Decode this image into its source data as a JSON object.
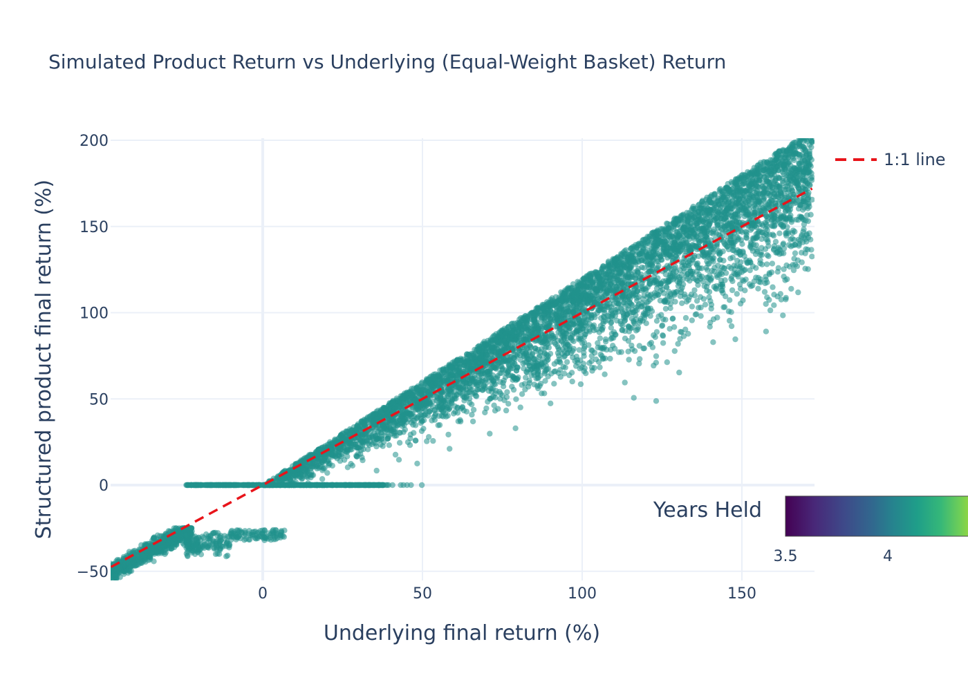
{
  "chart_data": {
    "type": "scatter",
    "title": "Simulated Product Return vs Underlying (Equal-Weight Basket) Return",
    "xlabel": "Underlying final return (%)",
    "ylabel": "Structured product final return (%)",
    "xlim": [
      -47.5,
      172
    ],
    "ylim": [
      -55,
      200
    ],
    "x_ticks": [
      "0",
      "50",
      "100",
      "150"
    ],
    "y_ticks": [
      "200",
      "150",
      "100",
      "50",
      "0",
      "−50"
    ],
    "x_tick_values": [
      0,
      50,
      100,
      150
    ],
    "y_tick_values": [
      200,
      150,
      100,
      50,
      0,
      -50
    ],
    "grid": true,
    "marker_color": "#21918c",
    "marker_opacity": 0.55,
    "series": [
      {
        "type": "scatter",
        "description_regions": [
          {
            "x_range": [
              -47.5,
              -24
            ],
            "y": "1:1 with underlying (loss region, slope ~1)",
            "y_range": [
              -55,
              -25
            ]
          },
          {
            "x_range": [
              -24,
              5
            ],
            "y_value": -27,
            "note": "band near -27 to -30"
          },
          {
            "x_range": [
              -24,
              35
            ],
            "y_value": 0,
            "note": "capital protected floor"
          },
          {
            "x_range": [
              0,
              172
            ],
            "note": "participation above 1:1 up to ~1.2x"
          }
        ],
        "points": [
          [
            -45,
            -50
          ],
          [
            -40,
            -44
          ],
          [
            -35,
            -38
          ],
          [
            -30,
            -33
          ],
          [
            -26,
            -28
          ],
          [
            -22,
            -27
          ],
          [
            -18,
            -28
          ],
          [
            -15,
            -26
          ],
          [
            -10,
            -27
          ],
          [
            -5,
            -29
          ],
          [
            0,
            -27
          ],
          [
            5,
            -28
          ],
          [
            -24,
            0
          ],
          [
            -10,
            0
          ],
          [
            0,
            0
          ],
          [
            10,
            0
          ],
          [
            20,
            0
          ],
          [
            30,
            0
          ],
          [
            35,
            0
          ],
          [
            50,
            0
          ],
          [
            5,
            6
          ],
          [
            10,
            12
          ],
          [
            20,
            24
          ],
          [
            30,
            36
          ],
          [
            40,
            48
          ],
          [
            50,
            60
          ],
          [
            60,
            72
          ],
          [
            70,
            84
          ],
          [
            80,
            96
          ],
          [
            90,
            108
          ],
          [
            100,
            120
          ],
          [
            110,
            132
          ],
          [
            120,
            144
          ],
          [
            130,
            156
          ],
          [
            140,
            168
          ],
          [
            150,
            180
          ],
          [
            160,
            192
          ],
          [
            20,
            12
          ],
          [
            40,
            30
          ],
          [
            60,
            42
          ],
          [
            80,
            70
          ],
          [
            100,
            80
          ],
          [
            120,
            100
          ],
          [
            140,
            150
          ],
          [
            160,
            170
          ],
          [
            170,
            150
          ]
        ]
      },
      {
        "name": "1:1 line",
        "type": "line",
        "dash": "dash",
        "color": "#e8141a",
        "x": [
          -47.5,
          172
        ],
        "y": [
          -47.5,
          172
        ]
      }
    ],
    "legend": {
      "entries": [
        "1:1 line"
      ],
      "placement": "top-right"
    },
    "colorbar": {
      "title": "Years Held",
      "tick_labels": [
        "3.5",
        "4"
      ],
      "tick_values": [
        3.5,
        4
      ],
      "colorscale": "viridis",
      "orientation": "horizontal"
    }
  }
}
